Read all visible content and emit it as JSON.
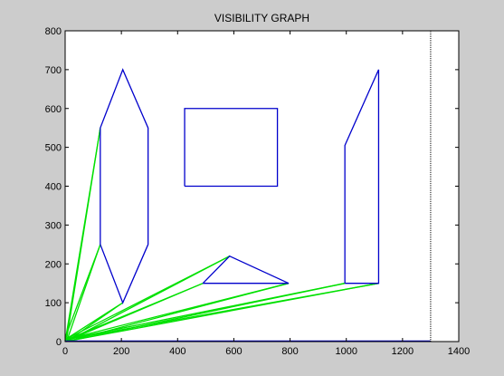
{
  "chart_data": {
    "type": "line",
    "title": "VISIBILITY GRAPH",
    "xlabel": "",
    "ylabel": "",
    "xlim": [
      0,
      1400
    ],
    "ylim": [
      0,
      800
    ],
    "x_ticks": [
      0,
      200,
      400,
      600,
      800,
      1000,
      1200,
      1400
    ],
    "y_ticks": [
      0,
      100,
      200,
      300,
      400,
      500,
      600,
      700,
      800
    ],
    "grid": false,
    "legend": "none",
    "colors": {
      "obstacle": "#0000cc",
      "visibility": "#00e000",
      "boundary": "#000000"
    },
    "boundary_x": 1300,
    "obstacles": [
      {
        "name": "hexagon",
        "points": [
          [
            125,
            550
          ],
          [
            205,
            700
          ],
          [
            295,
            550
          ],
          [
            295,
            250
          ],
          [
            205,
            100
          ],
          [
            125,
            250
          ],
          [
            125,
            550
          ]
        ]
      },
      {
        "name": "rectangle",
        "points": [
          [
            425,
            400
          ],
          [
            425,
            600
          ],
          [
            755,
            600
          ],
          [
            755,
            400
          ],
          [
            425,
            400
          ]
        ]
      },
      {
        "name": "triangle",
        "points": [
          [
            490,
            150
          ],
          [
            585,
            220
          ],
          [
            795,
            150
          ],
          [
            490,
            150
          ]
        ]
      },
      {
        "name": "quadrilateral",
        "points": [
          [
            995,
            150
          ],
          [
            995,
            505
          ],
          [
            1115,
            700
          ],
          [
            1115,
            150
          ],
          [
            995,
            150
          ]
        ]
      }
    ],
    "visibility_edges": [
      [
        [
          0,
          0
        ],
        [
          125,
          550
        ]
      ],
      [
        [
          5,
          5
        ],
        [
          125,
          550
        ]
      ],
      [
        [
          0,
          10
        ],
        [
          125,
          250
        ]
      ],
      [
        [
          5,
          0
        ],
        [
          125,
          250
        ]
      ],
      [
        [
          0,
          5
        ],
        [
          205,
          100
        ]
      ],
      [
        [
          5,
          0
        ],
        [
          205,
          100
        ]
      ],
      [
        [
          0,
          5
        ],
        [
          585,
          220
        ]
      ],
      [
        [
          5,
          0
        ],
        [
          585,
          220
        ]
      ],
      [
        [
          0,
          0
        ],
        [
          490,
          150
        ]
      ],
      [
        [
          5,
          5
        ],
        [
          490,
          150
        ]
      ],
      [
        [
          0,
          5
        ],
        [
          795,
          150
        ]
      ],
      [
        [
          5,
          0
        ],
        [
          795,
          150
        ]
      ],
      [
        [
          0,
          5
        ],
        [
          995,
          150
        ]
      ],
      [
        [
          5,
          0
        ],
        [
          995,
          150
        ]
      ],
      [
        [
          0,
          0
        ],
        [
          1115,
          150
        ]
      ],
      [
        [
          5,
          5
        ],
        [
          1115,
          150
        ]
      ]
    ],
    "ground_edge": [
      [
        0,
        0
      ],
      [
        1300,
        0
      ]
    ]
  }
}
